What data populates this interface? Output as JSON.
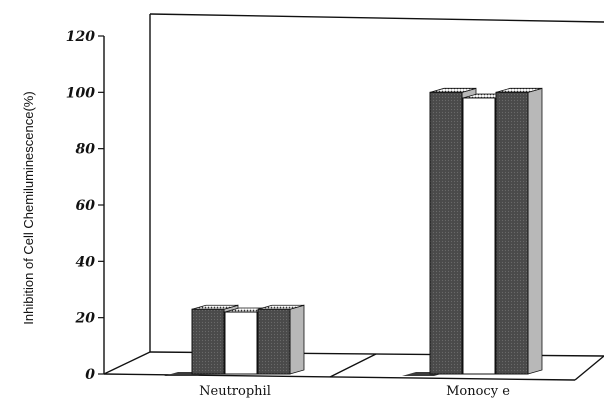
{
  "chart_data": {
    "type": "bar",
    "style": "3d",
    "categories": [
      "Neutrophil",
      "Monocy e"
    ],
    "series": [
      {
        "values": [
          23,
          100
        ],
        "color": "#505050"
      },
      {
        "values": [
          22,
          98
        ],
        "color": "#ffffff"
      },
      {
        "values": [
          23,
          100
        ],
        "color": "#505050"
      }
    ],
    "ylabel": "Inhibition of Cell Chemiluminescence(%)",
    "xlabel": "",
    "title": "",
    "yticks": [
      "0",
      "20",
      "40",
      "60",
      "80",
      "100",
      "120"
    ],
    "ylim": [
      0,
      120
    ],
    "grid": false,
    "legend": "none"
  }
}
